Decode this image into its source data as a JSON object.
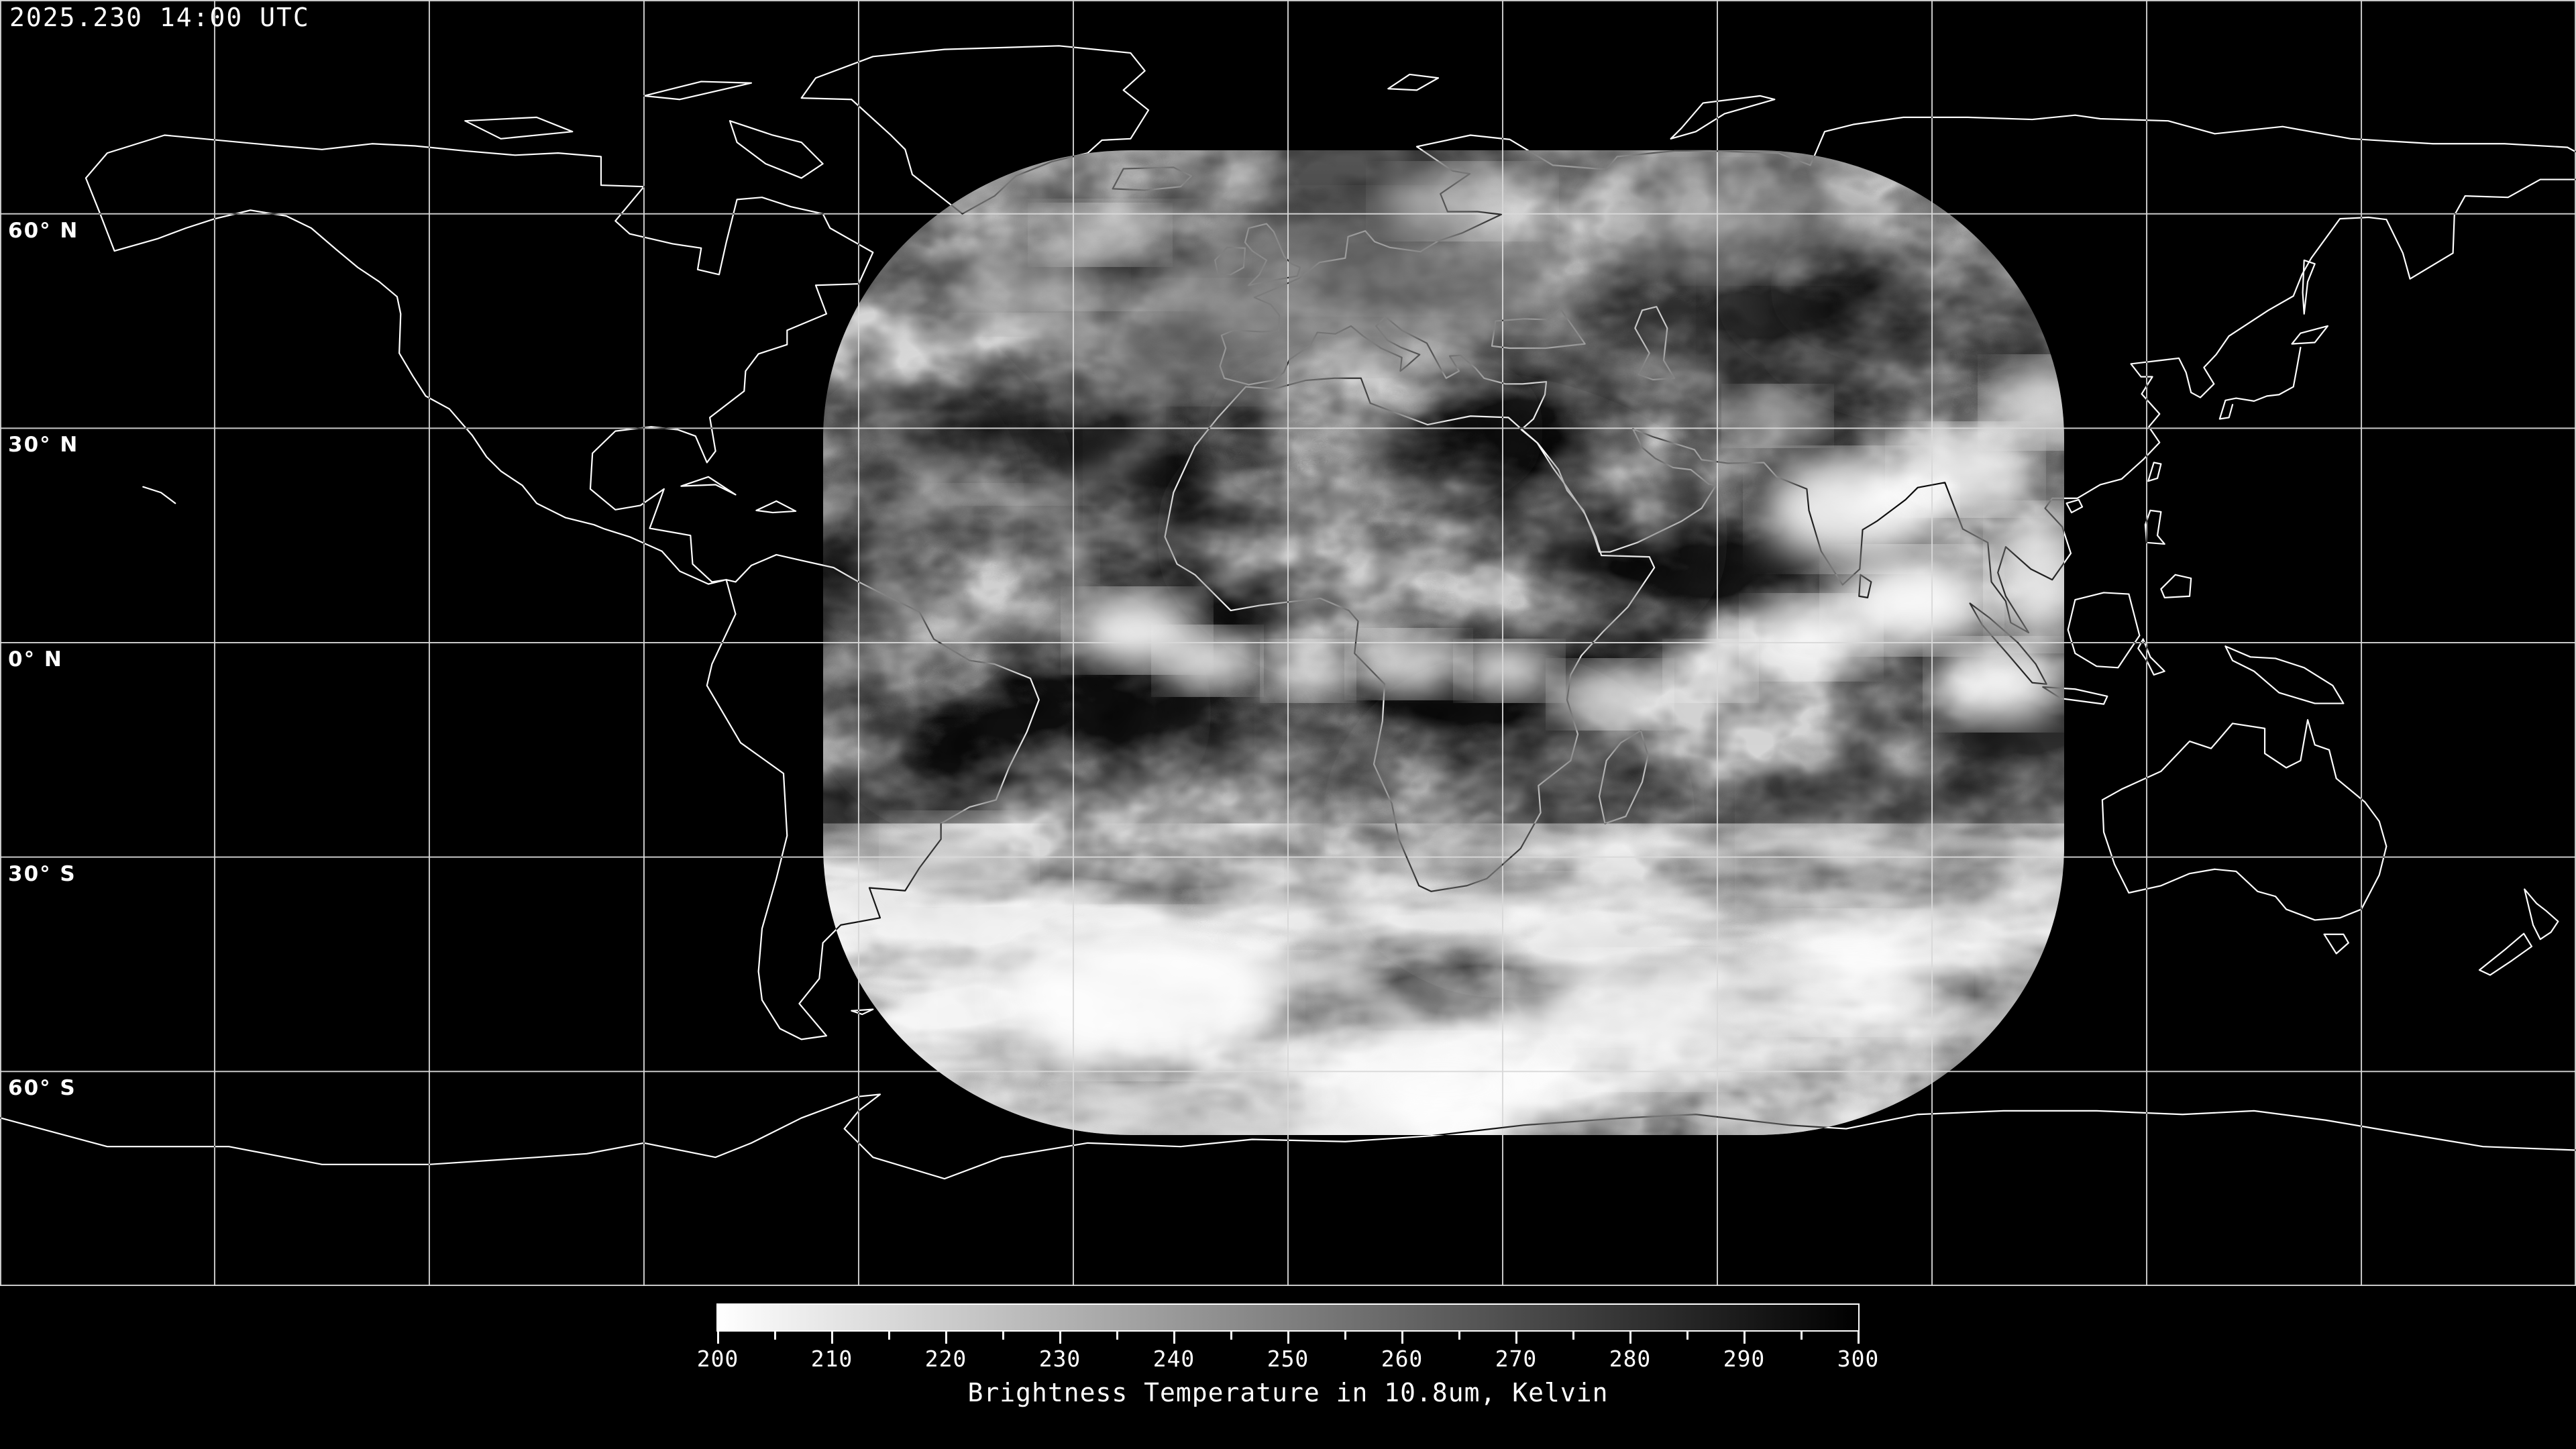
{
  "header": {
    "timestamp": "2025.230 14:00 UTC"
  },
  "map": {
    "projection": "equirectangular",
    "background_color": "#000000",
    "coastline_color": "#ffffff",
    "grid_color": "#d9d9d9",
    "latitude_labels": [
      {
        "text": "60° N",
        "latitude_deg": 60
      },
      {
        "text": "30° N",
        "latitude_deg": 30
      },
      {
        "text": "0° N",
        "latitude_deg": 0
      },
      {
        "text": "30° S",
        "latitude_deg": -30
      },
      {
        "text": "60° S",
        "latitude_deg": -60
      }
    ],
    "grid": {
      "latitude_lines_deg": [
        90,
        60,
        30,
        0,
        -30,
        -60,
        -90
      ],
      "longitude_lines_deg": [
        -180,
        -150,
        -120,
        -90,
        -60,
        -30,
        0,
        30,
        60,
        90,
        120,
        150,
        180
      ]
    }
  },
  "satellite_overlay": {
    "name": "infrared-brightness-temperature-composite"
  },
  "colorbar": {
    "title": "Brightness Temperature in 10.8um, Kelvin",
    "unit": "Kelvin",
    "min_value": 200,
    "max_value": 300,
    "major_ticks": [
      200,
      210,
      220,
      230,
      240,
      250,
      260,
      270,
      280,
      290,
      300
    ],
    "minor_tick_step": 5,
    "left_color": "#ffffff",
    "right_color": "#000000",
    "border_color": "#ffffff"
  }
}
